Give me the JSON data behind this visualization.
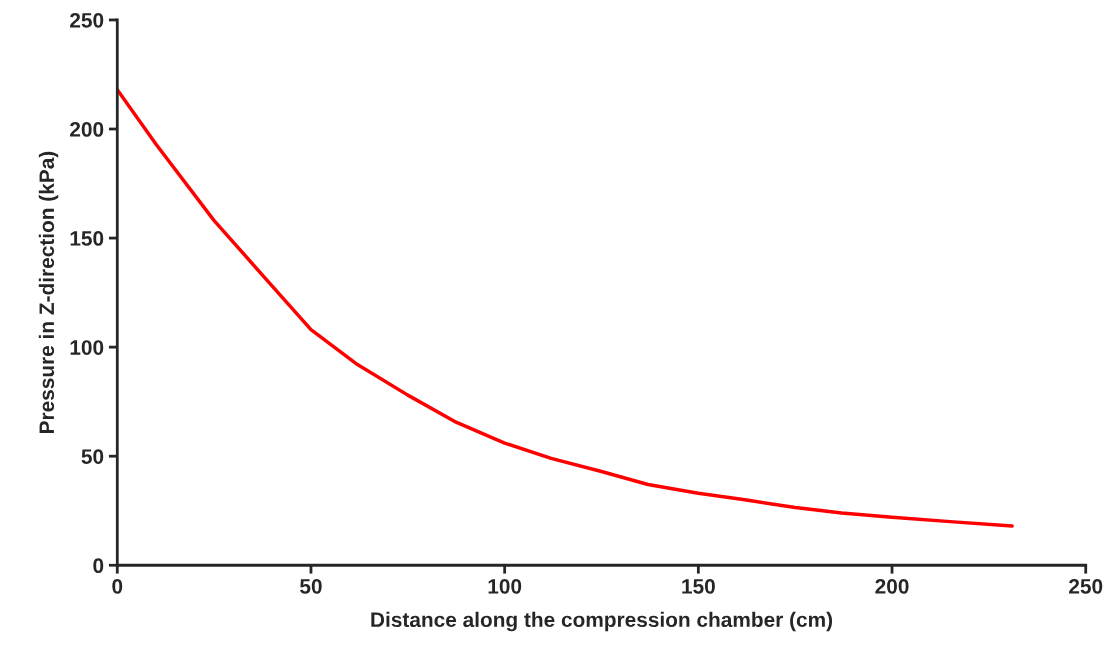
{
  "chart_data": {
    "type": "line",
    "xlabel": "Distance along the compression chamber (cm)",
    "ylabel": "Pressure in Z-direction (kPa)",
    "x": [
      0,
      10,
      25,
      40,
      50,
      62,
      75,
      87,
      100,
      112,
      125,
      137,
      150,
      162,
      175,
      187,
      200,
      215,
      231
    ],
    "series": [
      {
        "color": "#ff0000",
        "values": [
          218,
          193,
          158,
          128,
          108,
          92,
          78,
          66,
          56,
          49,
          43,
          37,
          33,
          30,
          26.5,
          24,
          22,
          20,
          18
        ]
      }
    ],
    "xlim": [
      0,
      250
    ],
    "ylim": [
      0,
      250
    ],
    "xticks": [
      0,
      50,
      100,
      150,
      200,
      250
    ],
    "yticks": [
      0,
      50,
      100,
      150,
      200,
      250
    ],
    "grid": false,
    "legend": false,
    "marker": "none",
    "line_style": "solid"
  }
}
